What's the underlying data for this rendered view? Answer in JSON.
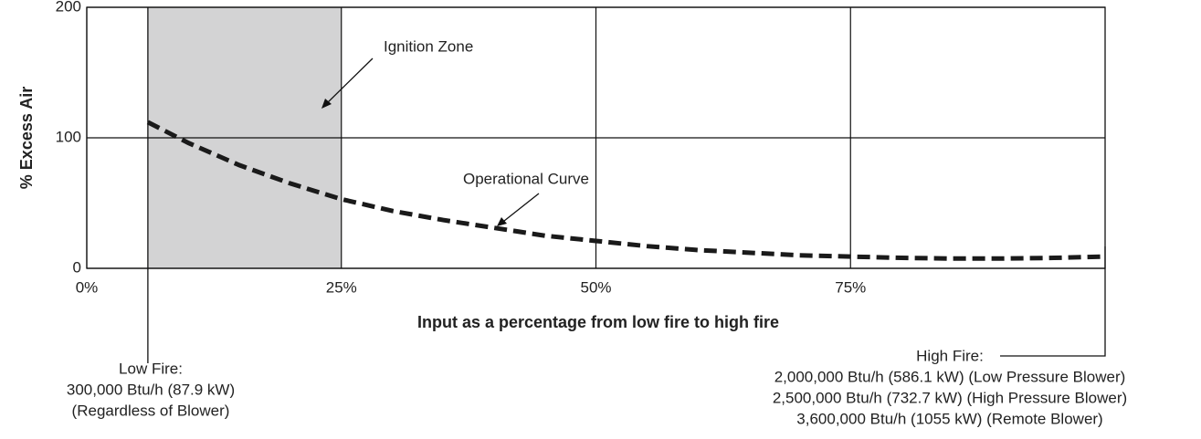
{
  "chart_data": {
    "type": "line",
    "ylabel": "% Excess Air",
    "xlabel": "Input as a percentage from low fire to high fire",
    "xlim": [
      0,
      100
    ],
    "ylim": [
      0,
      200
    ],
    "xticks": [
      {
        "value": 0,
        "label": "0%"
      },
      {
        "value": 25,
        "label": "25%"
      },
      {
        "value": 50,
        "label": "50%"
      },
      {
        "value": 75,
        "label": "75%"
      }
    ],
    "yticks": [
      0,
      100,
      200
    ],
    "grid": true,
    "shaded_region": {
      "label": "Ignition Zone",
      "x": [
        6,
        25
      ],
      "color": "#d3d3d4"
    },
    "series": [
      {
        "name": "Operational Curve",
        "color": "#1a1a1a",
        "x": [
          6,
          10,
          15,
          20,
          25,
          30,
          35,
          40,
          45,
          50,
          55,
          60,
          65,
          70,
          75,
          80,
          85,
          90,
          95,
          100
        ],
        "values": [
          112,
          96,
          79,
          65,
          53,
          44,
          37,
          31,
          25,
          21,
          17,
          14,
          12,
          10,
          9,
          8,
          7.5,
          7.5,
          8,
          9
        ]
      }
    ],
    "low_fire": [
      "Low Fire:",
      "300,000 Btu/h (87.9 kW)",
      "(Regardless of Blower)"
    ],
    "high_fire": [
      "High Fire:",
      "2,000,000 Btu/h (586.1 kW) (Low Pressure Blower)",
      "2,500,000 Btu/h (732.7 kW) (High Pressure Blower)",
      "3,600,000 Btu/h (1055 kW) (Remote Blower)"
    ]
  }
}
